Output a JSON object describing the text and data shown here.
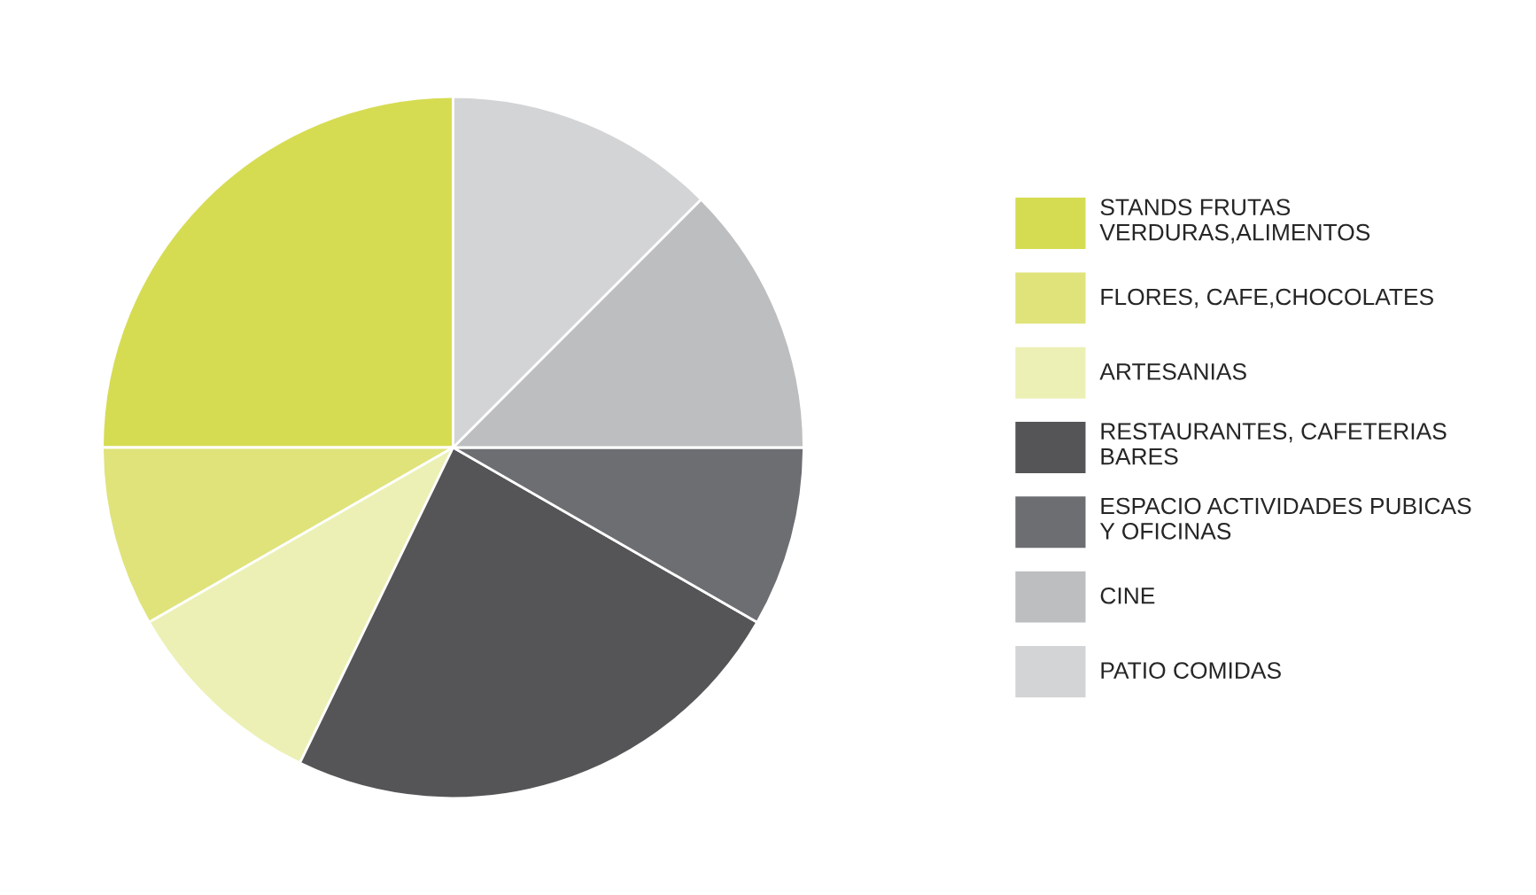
{
  "chart_data": {
    "type": "pie",
    "categories": [
      "STANDS FRUTAS\nVERDURAS,ALIMENTOS",
      "FLORES, CAFE,CHOCOLATES",
      "ARTESANIAS",
      "RESTAURANTES, CAFETERIAS\nBARES",
      "ESPACIO ACTIVIDADES PUBICAS\nY OFICINAS",
      "CINE",
      "PATIO COMIDAS"
    ],
    "values": [
      25,
      8.3,
      9.5,
      23.9,
      8.3,
      12.5,
      12.5
    ],
    "colors": [
      "#d6dc52",
      "#dfe37a",
      "#ecf0b4",
      "#555557",
      "#6d6e72",
      "#bdbec0",
      "#d3d4d6"
    ],
    "legend": "right"
  }
}
